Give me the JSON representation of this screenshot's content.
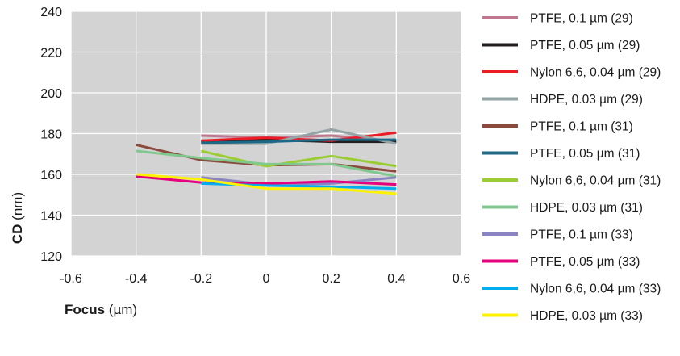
{
  "chart_data": {
    "type": "line",
    "xlabel": {
      "main": "Focus",
      "unit": " (µm)"
    },
    "ylabel": {
      "main": "CD",
      "unit": " (nm)"
    },
    "xlim": [
      -0.6,
      0.6
    ],
    "ylim": [
      120,
      240
    ],
    "x_ticks": [
      "-0.6",
      "-0.4",
      "-0.2",
      "0",
      "0.2",
      "0.4",
      "0.6"
    ],
    "y_ticks": [
      "120",
      "140",
      "160",
      "180",
      "200",
      "220",
      "240"
    ],
    "grid": true,
    "plot_background": "#d3d3d3",
    "grid_color": "#ffffff",
    "legend_position": "right",
    "series": [
      {
        "name": "PTFE, 0.1 µm (29)",
        "color": "#c0768e",
        "x": [
          -0.2,
          0,
          0.2,
          0.4
        ],
        "y": [
          179,
          178,
          179,
          176
        ]
      },
      {
        "name": "PTFE, 0.05 µm (29)",
        "color": "#231f20",
        "x": [
          -0.2,
          0,
          0.2,
          0.4
        ],
        "y": [
          176,
          177,
          176,
          176
        ]
      },
      {
        "name": "Nylon 6,6, 0.04 µm (29)",
        "color": "#ed1c24",
        "x": [
          -0.2,
          0,
          0.2,
          0.4
        ],
        "y": [
          176.5,
          178,
          176.5,
          180.5
        ]
      },
      {
        "name": "HDPE, 0.03 µm (29)",
        "color": "#95a5a6",
        "x": [
          -0.2,
          0,
          0.2,
          0.4
        ],
        "y": [
          175,
          175,
          182,
          175
        ]
      },
      {
        "name": "PTFE, 0.1 µm (31)",
        "color": "#8b4a3c",
        "x": [
          -0.4,
          -0.2,
          0,
          0.2,
          0.4
        ],
        "y": [
          174.5,
          167,
          164.5,
          165,
          161.5
        ]
      },
      {
        "name": "PTFE, 0.05 µm (31)",
        "color": "#1c6987",
        "x": [
          -0.2,
          0,
          0.2,
          0.4
        ],
        "y": [
          175.5,
          176,
          177,
          177
        ]
      },
      {
        "name": "Nylon 6,6, 0.04 µm (31)",
        "color": "#9acd32",
        "x": [
          -0.2,
          0,
          0.2,
          0.4
        ],
        "y": [
          171.5,
          164,
          169,
          164
        ]
      },
      {
        "name": "HDPE, 0.03 µm (31)",
        "color": "#7fc98f",
        "x": [
          -0.4,
          -0.2,
          0,
          0.2,
          0.4
        ],
        "y": [
          171.5,
          168,
          165,
          165,
          159
        ]
      },
      {
        "name": "PTFE, 0.1 µm (33)",
        "color": "#8a84c2",
        "x": [
          -0.2,
          0,
          0.2,
          0.4
        ],
        "y": [
          158.5,
          155,
          155.5,
          158.5
        ]
      },
      {
        "name": "PTFE, 0.05 µm (33)",
        "color": "#e6007e",
        "x": [
          -0.4,
          -0.2,
          0,
          0.2,
          0.4
        ],
        "y": [
          159,
          156,
          155.5,
          156.5,
          155
        ]
      },
      {
        "name": "Nylon 6,6, 0.04 µm (33)",
        "color": "#00aeef",
        "x": [
          -0.2,
          0,
          0.2,
          0.4
        ],
        "y": [
          155.5,
          154.5,
          154,
          153
        ]
      },
      {
        "name": "HDPE, 0.03 µm (33)",
        "color": "#fff200",
        "x": [
          -0.4,
          -0.2,
          0,
          0.2,
          0.4
        ],
        "y": [
          160,
          157.5,
          153,
          153,
          150.5
        ]
      }
    ]
  }
}
